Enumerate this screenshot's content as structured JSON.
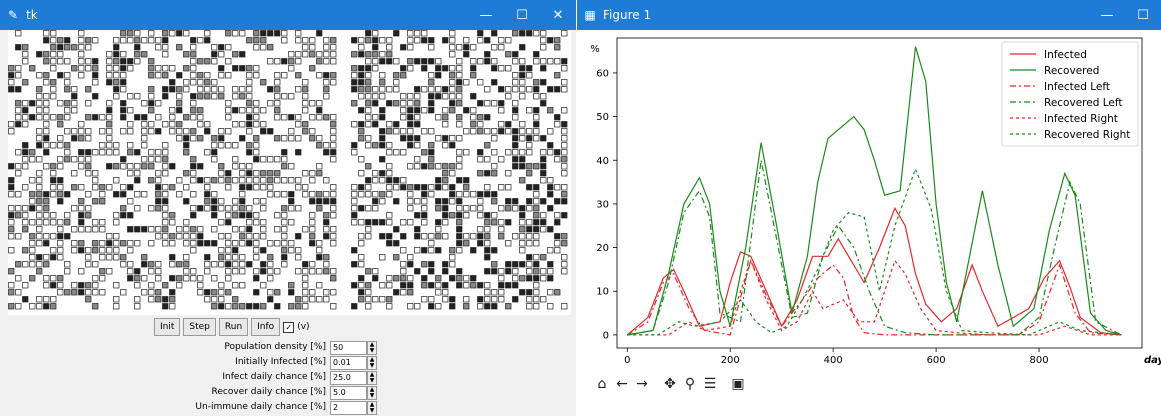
{
  "tk_window": {
    "title": "tk",
    "buttons": {
      "init": "Init",
      "step": "Step",
      "run": "Run",
      "info": "Info"
    },
    "checkbox": {
      "checked": true,
      "label": "(v)",
      "mark": "✓"
    },
    "params": [
      {
        "label": "Population density [%]",
        "value": "50"
      },
      {
        "label": "Initially Infected [%]",
        "value": "0.01"
      },
      {
        "label": "Infect daily chance [%]",
        "value": "25.0"
      },
      {
        "label": "Recover daily chance [%]",
        "value": "5.0"
      },
      {
        "label": "Un-immune daily chance [%]",
        "value": "2"
      }
    ]
  },
  "figure_window": {
    "title": "Figure 1",
    "toolbar_icons": [
      "home-icon",
      "back-icon",
      "forward-icon",
      "pan-icon",
      "zoom-icon",
      "configure-icon",
      "save-icon"
    ]
  },
  "window_controls": {
    "minimize": "—",
    "maximize": "☐",
    "close": "✕"
  },
  "colors": {
    "titlebar": "#1e7cd6",
    "infected": "#e8262a",
    "recovered": "#1a8a1a"
  },
  "chart_data": {
    "type": "line",
    "xlabel": "days",
    "ylabel": "%",
    "xlim": [
      -20,
      1000
    ],
    "ylim": [
      -3,
      68
    ],
    "xticks": [
      0,
      200,
      400,
      600,
      800
    ],
    "yticks": [
      0,
      10,
      20,
      30,
      40,
      50,
      60
    ],
    "legend_position": "top-right",
    "series": [
      {
        "name": "Infected",
        "color": "#e8262a",
        "dash": "",
        "points": [
          [
            0,
            0
          ],
          [
            40,
            4
          ],
          [
            70,
            13
          ],
          [
            90,
            15
          ],
          [
            110,
            10
          ],
          [
            140,
            2
          ],
          [
            180,
            3
          ],
          [
            200,
            12
          ],
          [
            220,
            19
          ],
          [
            240,
            18
          ],
          [
            270,
            10
          ],
          [
            300,
            2
          ],
          [
            330,
            8
          ],
          [
            360,
            18
          ],
          [
            390,
            18
          ],
          [
            410,
            22
          ],
          [
            430,
            18
          ],
          [
            460,
            12
          ],
          [
            490,
            20
          ],
          [
            520,
            29
          ],
          [
            540,
            25
          ],
          [
            560,
            14
          ],
          [
            580,
            7
          ],
          [
            610,
            3
          ],
          [
            640,
            6
          ],
          [
            670,
            16
          ],
          [
            690,
            10
          ],
          [
            720,
            2
          ],
          [
            780,
            6
          ],
          [
            810,
            13
          ],
          [
            840,
            17
          ],
          [
            860,
            11
          ],
          [
            880,
            4
          ],
          [
            920,
            0.5
          ],
          [
            960,
            0
          ]
        ]
      },
      {
        "name": "Recovered",
        "color": "#1a8a1a",
        "dash": "",
        "points": [
          [
            0,
            0
          ],
          [
            50,
            1
          ],
          [
            80,
            14
          ],
          [
            110,
            30
          ],
          [
            140,
            36
          ],
          [
            160,
            30
          ],
          [
            180,
            10
          ],
          [
            200,
            2
          ],
          [
            230,
            20
          ],
          [
            260,
            44
          ],
          [
            290,
            25
          ],
          [
            320,
            5
          ],
          [
            350,
            18
          ],
          [
            370,
            35
          ],
          [
            390,
            45
          ],
          [
            420,
            48
          ],
          [
            440,
            50
          ],
          [
            460,
            47
          ],
          [
            480,
            40
          ],
          [
            500,
            32
          ],
          [
            530,
            33
          ],
          [
            560,
            66
          ],
          [
            580,
            58
          ],
          [
            600,
            30
          ],
          [
            620,
            12
          ],
          [
            640,
            3
          ],
          [
            660,
            15
          ],
          [
            690,
            33
          ],
          [
            720,
            16
          ],
          [
            750,
            2
          ],
          [
            790,
            6
          ],
          [
            820,
            24
          ],
          [
            850,
            37
          ],
          [
            870,
            32
          ],
          [
            900,
            5
          ],
          [
            930,
            1
          ],
          [
            960,
            0
          ]
        ]
      },
      {
        "name": "Infected Left",
        "color": "#e8262a",
        "dash": "6 3 2 3",
        "points": [
          [
            0,
            0
          ],
          [
            40,
            3
          ],
          [
            70,
            12
          ],
          [
            90,
            14
          ],
          [
            120,
            6
          ],
          [
            150,
            1
          ],
          [
            200,
            0
          ],
          [
            240,
            17
          ],
          [
            270,
            9
          ],
          [
            300,
            2
          ],
          [
            340,
            8
          ],
          [
            370,
            13
          ],
          [
            400,
            16
          ],
          [
            420,
            13
          ],
          [
            440,
            4
          ],
          [
            460,
            0.5
          ],
          [
            500,
            0
          ],
          [
            540,
            0
          ],
          [
            600,
            0
          ],
          [
            640,
            0
          ],
          [
            680,
            0
          ],
          [
            720,
            0
          ],
          [
            760,
            0
          ],
          [
            800,
            3
          ],
          [
            840,
            16
          ],
          [
            870,
            5
          ],
          [
            900,
            0.5
          ],
          [
            960,
            0
          ]
        ]
      },
      {
        "name": "Recovered Left",
        "color": "#1a8a1a",
        "dash": "6 3 2 3",
        "points": [
          [
            0,
            0
          ],
          [
            50,
            1
          ],
          [
            80,
            12
          ],
          [
            110,
            28
          ],
          [
            140,
            33
          ],
          [
            160,
            27
          ],
          [
            180,
            5
          ],
          [
            220,
            3
          ],
          [
            260,
            40
          ],
          [
            290,
            22
          ],
          [
            320,
            4
          ],
          [
            350,
            5
          ],
          [
            380,
            18
          ],
          [
            410,
            25
          ],
          [
            440,
            20
          ],
          [
            470,
            10
          ],
          [
            500,
            2
          ],
          [
            540,
            0.5
          ],
          [
            600,
            0
          ],
          [
            650,
            0
          ],
          [
            700,
            0
          ],
          [
            760,
            0
          ],
          [
            800,
            4
          ],
          [
            830,
            20
          ],
          [
            860,
            35
          ],
          [
            880,
            30
          ],
          [
            910,
            3
          ],
          [
            960,
            0
          ]
        ]
      },
      {
        "name": "Infected Right",
        "color": "#e8262a",
        "dash": "3 3",
        "points": [
          [
            0,
            0
          ],
          [
            80,
            0
          ],
          [
            120,
            3
          ],
          [
            150,
            1
          ],
          [
            200,
            2
          ],
          [
            220,
            10
          ],
          [
            240,
            17
          ],
          [
            270,
            8
          ],
          [
            300,
            1
          ],
          [
            330,
            3
          ],
          [
            360,
            10
          ],
          [
            380,
            6
          ],
          [
            420,
            8
          ],
          [
            450,
            3
          ],
          [
            480,
            3
          ],
          [
            520,
            17
          ],
          [
            540,
            14
          ],
          [
            570,
            6
          ],
          [
            600,
            1
          ],
          [
            640,
            0.5
          ],
          [
            700,
            0
          ],
          [
            800,
            0
          ],
          [
            850,
            2
          ],
          [
            900,
            0
          ],
          [
            960,
            0
          ]
        ]
      },
      {
        "name": "Recovered Right",
        "color": "#1a8a1a",
        "dash": "3 3",
        "points": [
          [
            0,
            0
          ],
          [
            60,
            0
          ],
          [
            100,
            3
          ],
          [
            130,
            2
          ],
          [
            180,
            3
          ],
          [
            220,
            8
          ],
          [
            250,
            3
          ],
          [
            280,
            0.5
          ],
          [
            310,
            2
          ],
          [
            340,
            8
          ],
          [
            370,
            15
          ],
          [
            400,
            24
          ],
          [
            430,
            28
          ],
          [
            460,
            27
          ],
          [
            490,
            10
          ],
          [
            520,
            25
          ],
          [
            560,
            38
          ],
          [
            590,
            29
          ],
          [
            620,
            10
          ],
          [
            650,
            1
          ],
          [
            700,
            0.5
          ],
          [
            780,
            0
          ],
          [
            840,
            3
          ],
          [
            880,
            1
          ],
          [
            960,
            0
          ]
        ]
      }
    ]
  }
}
